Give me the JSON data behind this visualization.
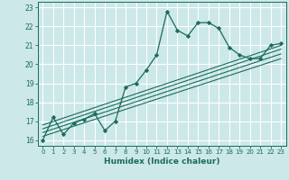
{
  "title": "",
  "xlabel": "Humidex (Indice chaleur)",
  "ylabel": "",
  "bg_color": "#cce8e8",
  "grid_color": "#ffffff",
  "line_color": "#1a6b5a",
  "xlim": [
    -0.5,
    23.5
  ],
  "ylim": [
    15.7,
    23.3
  ],
  "xticks": [
    0,
    1,
    2,
    3,
    4,
    5,
    6,
    7,
    8,
    9,
    10,
    11,
    12,
    13,
    14,
    15,
    16,
    17,
    18,
    19,
    20,
    21,
    22,
    23
  ],
  "yticks": [
    16,
    17,
    18,
    19,
    20,
    21,
    22,
    23
  ],
  "main_line_x": [
    0,
    1,
    2,
    3,
    4,
    5,
    6,
    7,
    8,
    9,
    10,
    11,
    12,
    13,
    14,
    15,
    16,
    17,
    18,
    19,
    20,
    21,
    22,
    23
  ],
  "main_line_y": [
    16.0,
    17.2,
    16.3,
    16.9,
    17.1,
    17.4,
    16.5,
    17.0,
    18.8,
    19.0,
    19.7,
    20.5,
    22.8,
    21.8,
    21.5,
    22.2,
    22.2,
    21.9,
    20.9,
    20.5,
    20.3,
    20.3,
    21.0,
    21.1
  ],
  "reg_lines": [
    {
      "x": [
        0,
        23
      ],
      "y": [
        16.2,
        20.3
      ]
    },
    {
      "x": [
        0,
        23
      ],
      "y": [
        16.4,
        20.55
      ]
    },
    {
      "x": [
        0,
        23
      ],
      "y": [
        16.6,
        20.8
      ]
    },
    {
      "x": [
        0,
        23
      ],
      "y": [
        16.8,
        21.0
      ]
    }
  ]
}
